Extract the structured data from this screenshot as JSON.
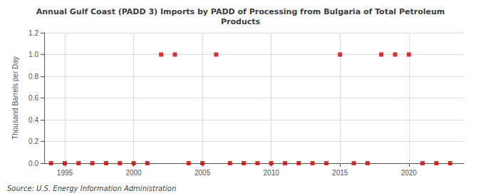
{
  "chart_data": {
    "type": "scatter",
    "title": "Annual Gulf Coast (PADD 3) Imports by PADD of Processing from Bulgaria of Total Petroleum\nProducts",
    "ylabel": "Thousand Barrels per Day",
    "source": "Source: U.S. Energy Information Administration",
    "x": [
      1994,
      1995,
      1996,
      1997,
      1998,
      1999,
      2000,
      2001,
      2002,
      2003,
      2004,
      2005,
      2006,
      2007,
      2008,
      2009,
      2010,
      2011,
      2012,
      2013,
      2014,
      2015,
      2016,
      2017,
      2018,
      2019,
      2020,
      2021,
      2022,
      2023
    ],
    "values": [
      0.0,
      0.0,
      0.0,
      0.0,
      0.0,
      0.0,
      0.0,
      0.0,
      1.0,
      1.0,
      0.0,
      0.0,
      1.0,
      0.0,
      0.0,
      0.0,
      0.0,
      0.0,
      0.0,
      0.0,
      0.0,
      1.0,
      0.0,
      0.0,
      1.0,
      1.0,
      1.0,
      0.0,
      0.0,
      0.0
    ],
    "color": "#cc0000",
    "marker": "square",
    "xlim": [
      1993.5,
      2024
    ],
    "xticks": [
      1995,
      2000,
      2005,
      2010,
      2015,
      2020
    ],
    "ylim": [
      0.0,
      1.2
    ],
    "yticks": [
      {
        "value": 0.0,
        "label": "0.0"
      },
      0.2,
      0.4,
      0.6,
      0.8,
      {
        "value": 1.0,
        "label": "1.0"
      },
      1.2
    ],
    "grid": true
  }
}
